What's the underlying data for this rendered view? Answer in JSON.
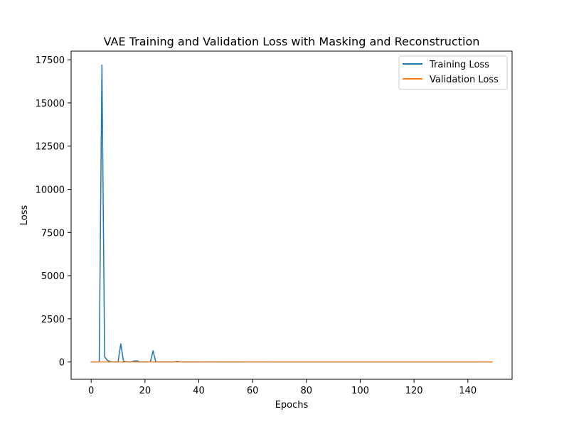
{
  "chart_data": {
    "type": "line",
    "title": "VAE Training and Validation Loss with Masking and Reconstruction",
    "xlabel": "Epochs",
    "ylabel": "Loss",
    "xlim": [
      -7.45,
      156.45
    ],
    "ylim": [
      -1000,
      18000
    ],
    "xticks": [
      0,
      20,
      40,
      60,
      80,
      100,
      120,
      140
    ],
    "yticks": [
      0,
      2500,
      5000,
      7500,
      10000,
      12500,
      15000,
      17500
    ],
    "grid": false,
    "legend_position": "top-right",
    "series": [
      {
        "name": "Training Loss",
        "color": "#1f77b4",
        "points": [
          [
            0,
            0
          ],
          [
            1,
            0
          ],
          [
            2,
            0
          ],
          [
            3,
            0
          ],
          [
            4,
            17200
          ],
          [
            5,
            300
          ],
          [
            6,
            100
          ],
          [
            7,
            30
          ],
          [
            8,
            15
          ],
          [
            9,
            10
          ],
          [
            10,
            5
          ],
          [
            11,
            1050
          ],
          [
            12,
            60
          ],
          [
            13,
            20
          ],
          [
            14,
            10
          ],
          [
            15,
            20
          ],
          [
            16,
            60
          ],
          [
            17,
            70
          ],
          [
            18,
            10
          ],
          [
            19,
            5
          ],
          [
            20,
            5
          ],
          [
            21,
            5
          ],
          [
            22,
            10
          ],
          [
            23,
            650
          ],
          [
            24,
            10
          ],
          [
            25,
            5
          ],
          [
            26,
            5
          ],
          [
            27,
            5
          ],
          [
            28,
            5
          ],
          [
            29,
            5
          ],
          [
            30,
            5
          ],
          [
            31,
            15
          ],
          [
            32,
            40
          ],
          [
            33,
            15
          ],
          [
            34,
            5
          ],
          [
            35,
            5
          ],
          [
            149,
            0
          ]
        ]
      },
      {
        "name": "Validation Loss",
        "color": "#ff7f0e",
        "points": [
          [
            0,
            0
          ],
          [
            149,
            0
          ]
        ]
      }
    ]
  }
}
